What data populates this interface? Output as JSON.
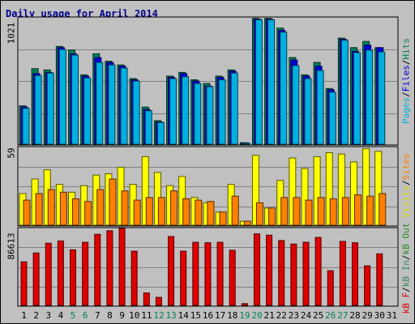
{
  "title": "Daily usage for April 2014",
  "colors": {
    "background": "#c0c0c0",
    "title": "#00008b",
    "pages": "#00b0e0",
    "files": "#0000e0",
    "hits": "#00805c",
    "visits": "#ffff00",
    "sites": "#ff8000",
    "kb_in": "#2e8b57",
    "kb_out": "#228b22",
    "kb_f": "#e00000",
    "weekend_day": "#00805c"
  },
  "legend": {
    "top": [
      "Pages",
      "/",
      "Files",
      "/",
      "Hits"
    ],
    "middle": [
      "Visits",
      "/",
      "Sites"
    ],
    "bottom": [
      "kB F",
      "/",
      "kB In",
      "/",
      "kB Out"
    ]
  },
  "chart_data": [
    {
      "type": "bar",
      "panel": "hits-files-pages",
      "max_label": "1021",
      "ylim": [
        0,
        1021
      ],
      "categories": [
        "1",
        "2",
        "3",
        "4",
        "5",
        "6",
        "7",
        "8",
        "9",
        "10",
        "11",
        "12",
        "13",
        "14",
        "15",
        "16",
        "17",
        "18",
        "19",
        "20",
        "21",
        "22",
        "23",
        "24",
        "25",
        "26",
        "27",
        "28",
        "29",
        "30",
        "31"
      ],
      "series": [
        {
          "name": "Hits",
          "values": [
            310,
            610,
            600,
            790,
            760,
            560,
            730,
            670,
            640,
            530,
            300,
            190,
            550,
            580,
            520,
            490,
            550,
            600,
            12,
            1016,
            1016,
            938,
            700,
            560,
            660,
            450,
            857,
            780,
            830,
            780,
            0
          ]
        },
        {
          "name": "Files",
          "values": [
            300,
            570,
            580,
            780,
            730,
            550,
            700,
            660,
            630,
            520,
            280,
            180,
            540,
            570,
            510,
            470,
            540,
            590,
            10,
            1010,
            1010,
            920,
            680,
            550,
            630,
            440,
            847,
            750,
            800,
            780,
            0
          ]
        },
        {
          "name": "Pages",
          "values": [
            290,
            555,
            575,
            765,
            720,
            535,
            660,
            640,
            615,
            510,
            270,
            175,
            530,
            545,
            490,
            465,
            520,
            575,
            8,
            1005,
            1005,
            905,
            635,
            530,
            595,
            420,
            840,
            740,
            760,
            745,
            0
          ]
        }
      ]
    },
    {
      "type": "bar",
      "panel": "visits-sites",
      "max_label": "59",
      "ylim": [
        0,
        59
      ],
      "categories": [
        "1",
        "2",
        "3",
        "4",
        "5",
        "6",
        "7",
        "8",
        "9",
        "10",
        "11",
        "12",
        "13",
        "14",
        "15",
        "16",
        "17",
        "18",
        "19",
        "20",
        "21",
        "22",
        "23",
        "24",
        "25",
        "26",
        "27",
        "28",
        "29",
        "30",
        "31"
      ],
      "series": [
        {
          "name": "Visits",
          "values": [
            24,
            35,
            42,
            31,
            25,
            30,
            38,
            39,
            44,
            31,
            52,
            40,
            30,
            37,
            21,
            17,
            10,
            31,
            3,
            53,
            13,
            34,
            51,
            43,
            52,
            55,
            54,
            48,
            58,
            56,
            0
          ]
        },
        {
          "name": "Sites",
          "values": [
            19,
            24,
            27,
            25,
            20,
            18,
            27,
            35,
            26,
            19,
            21,
            21,
            26,
            20,
            19,
            18,
            10,
            22,
            3,
            17,
            13,
            21,
            21,
            19,
            21,
            20,
            21,
            23,
            22,
            24,
            0
          ]
        }
      ]
    },
    {
      "type": "bar",
      "panel": "kb",
      "max_label": "86613",
      "ylim": [
        0,
        86613
      ],
      "categories": [
        "1",
        "2",
        "3",
        "4",
        "5",
        "6",
        "7",
        "8",
        "9",
        "10",
        "11",
        "12",
        "13",
        "14",
        "15",
        "16",
        "17",
        "18",
        "19",
        "20",
        "21",
        "22",
        "23",
        "24",
        "25",
        "26",
        "27",
        "28",
        "29",
        "30",
        "31"
      ],
      "series": [
        {
          "name": "kB F",
          "values": [
            49000,
            59000,
            70000,
            72500,
            62500,
            71000,
            80000,
            84000,
            86613,
            61000,
            14000,
            9000,
            77500,
            61000,
            71000,
            70500,
            71000,
            62000,
            2000,
            80500,
            79000,
            73000,
            69000,
            71000,
            76500,
            39000,
            72000,
            70500,
            44500,
            58000,
            0
          ]
        }
      ]
    }
  ],
  "x_axis": {
    "days": [
      "1",
      "2",
      "3",
      "4",
      "5",
      "6",
      "7",
      "8",
      "9",
      "10",
      "11",
      "12",
      "13",
      "14",
      "15",
      "16",
      "17",
      "18",
      "19",
      "20",
      "21",
      "22",
      "23",
      "24",
      "25",
      "26",
      "27",
      "28",
      "29",
      "30",
      "31"
    ],
    "weekend_days": [
      "5",
      "6",
      "12",
      "13",
      "19",
      "20",
      "26",
      "27"
    ]
  }
}
